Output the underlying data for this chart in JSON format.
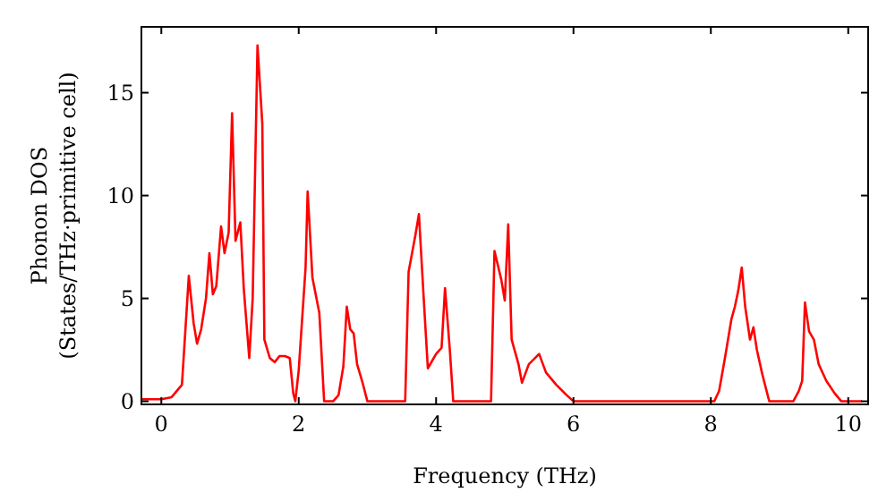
{
  "chart_data": {
    "type": "line",
    "xlabel": "Frequency (THz)",
    "ylabel": "Phonon DOS\n(States/THz·primitive cell)",
    "xlim": [
      -0.29,
      10.29
    ],
    "ylim": [
      -0.15,
      18.2
    ],
    "xticks": [
      0,
      2,
      4,
      6,
      8,
      10
    ],
    "yticks": [
      0,
      5,
      10,
      15
    ],
    "grid": false,
    "line_style": "solid",
    "series": [
      {
        "color": "#ff0000",
        "x": [
          -0.29,
          0,
          0.15,
          0.3,
          0.4,
          0.47,
          0.52,
          0.58,
          0.65,
          0.7,
          0.75,
          0.8,
          0.87,
          0.92,
          0.98,
          1.03,
          1.08,
          1.15,
          1.2,
          1.28,
          1.33,
          1.4,
          1.47,
          1.5,
          1.58,
          1.65,
          1.72,
          1.8,
          1.87,
          1.92,
          1.95,
          2.0,
          2.1,
          2.13,
          2.2,
          2.3,
          2.37,
          2.5,
          2.58,
          2.65,
          2.7,
          2.75,
          2.8,
          2.85,
          2.93,
          3.0,
          3.55,
          3.6,
          3.7,
          3.75,
          3.82,
          3.88,
          4.0,
          4.08,
          4.13,
          4.2,
          4.25,
          4.8,
          4.85,
          4.95,
          5.0,
          5.05,
          5.1,
          5.2,
          5.25,
          5.35,
          5.5,
          5.6,
          5.75,
          5.9,
          6.0,
          8.05,
          8.12,
          8.2,
          8.3,
          8.35,
          8.4,
          8.45,
          8.5,
          8.57,
          8.62,
          8.67,
          8.75,
          8.85,
          9.2,
          9.28,
          9.33,
          9.37,
          9.43,
          9.5,
          9.57,
          9.68,
          9.8,
          9.9,
          10.2
        ],
        "values": [
          0.1,
          0.1,
          0.2,
          0.8,
          6.1,
          3.8,
          2.8,
          3.5,
          5.0,
          7.2,
          5.2,
          5.6,
          8.5,
          7.2,
          8.2,
          14.0,
          7.8,
          8.7,
          5.5,
          2.1,
          5.0,
          17.3,
          13.5,
          3.0,
          2.1,
          1.9,
          2.2,
          2.2,
          2.1,
          0.4,
          0,
          1.5,
          6.5,
          10.2,
          6.0,
          4.3,
          0,
          0,
          0.3,
          1.7,
          4.6,
          3.5,
          3.3,
          1.8,
          0.9,
          0,
          0,
          6.3,
          8.1,
          9.1,
          5.0,
          1.6,
          2.3,
          2.6,
          5.5,
          2.5,
          0,
          0,
          7.3,
          5.9,
          4.9,
          8.6,
          3.0,
          1.8,
          0.9,
          1.8,
          2.3,
          1.4,
          0.8,
          0.3,
          0,
          0,
          0.5,
          2.0,
          4.0,
          4.6,
          5.4,
          6.5,
          4.6,
          3.0,
          3.6,
          2.5,
          1.3,
          0,
          0,
          0.5,
          1.0,
          4.8,
          3.4,
          3.0,
          1.8,
          1.0,
          0.4,
          0,
          0
        ]
      }
    ]
  }
}
